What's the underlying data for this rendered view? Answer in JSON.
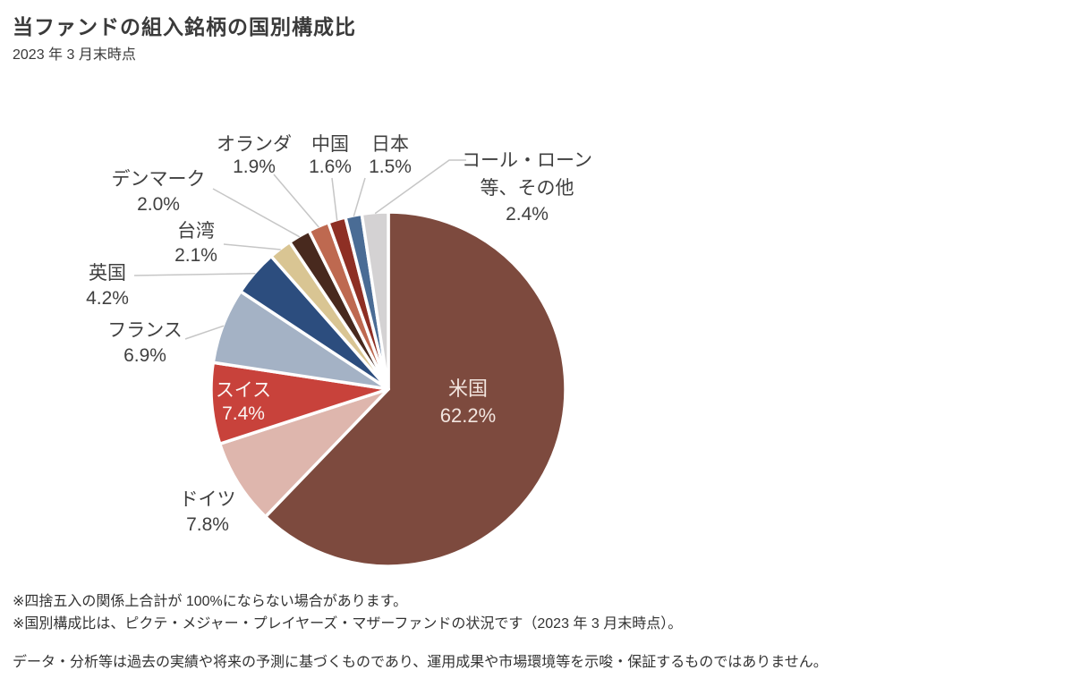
{
  "header": {
    "title": "当ファンドの組入銘柄の国別構成比",
    "subtitle": "2023 年 3 月末時点"
  },
  "chart_data": {
    "type": "pie",
    "title": "当ファンドの組入銘柄の国別構成比",
    "as_of": "2023 年 3 月末時点",
    "unit": "%",
    "start_angle": "12時方向から時計回り",
    "total": 100.0,
    "slices": [
      {
        "id": "usa",
        "label": "米国",
        "value": 62.2,
        "color": "#7d4a3e"
      },
      {
        "id": "germany",
        "label": "ドイツ",
        "value": 7.8,
        "color": "#deb6ad"
      },
      {
        "id": "switzerland",
        "label": "スイス",
        "value": 7.4,
        "color": "#c8423b"
      },
      {
        "id": "france",
        "label": "フランス",
        "value": 6.9,
        "color": "#a4b2c5"
      },
      {
        "id": "uk",
        "label": "英国",
        "value": 4.2,
        "color": "#2c4d7e"
      },
      {
        "id": "taiwan",
        "label": "台湾",
        "value": 2.1,
        "color": "#d9c593"
      },
      {
        "id": "denmark",
        "label": "デンマーク",
        "value": 2.0,
        "color": "#48291e"
      },
      {
        "id": "netherlands",
        "label": "オランダ",
        "value": 1.9,
        "color": "#be6950"
      },
      {
        "id": "china",
        "label": "中国",
        "value": 1.6,
        "color": "#8e2f24"
      },
      {
        "id": "japan",
        "label": "日本",
        "value": 1.5,
        "color": "#4a6c95"
      },
      {
        "id": "call-loan",
        "label": "コール・ローン等、その他",
        "label_lines": [
          "コール・ローン",
          "等、その他"
        ],
        "value": 2.4,
        "color": "#d4d2d3"
      }
    ]
  },
  "footnotes": [
    "※四捨五入の関係上合計が 100%にならない場合があります。",
    "※国別構成比は、ピクテ・メジャー・プレイヤーズ・マザーファンドの状況です（2023 年 3 月末時点）。"
  ],
  "disclaimer": "データ・分析等は過去の実績や将来の予測に基づくものであり、運用成果や市場環境等を示唆・保証するものではありません。"
}
